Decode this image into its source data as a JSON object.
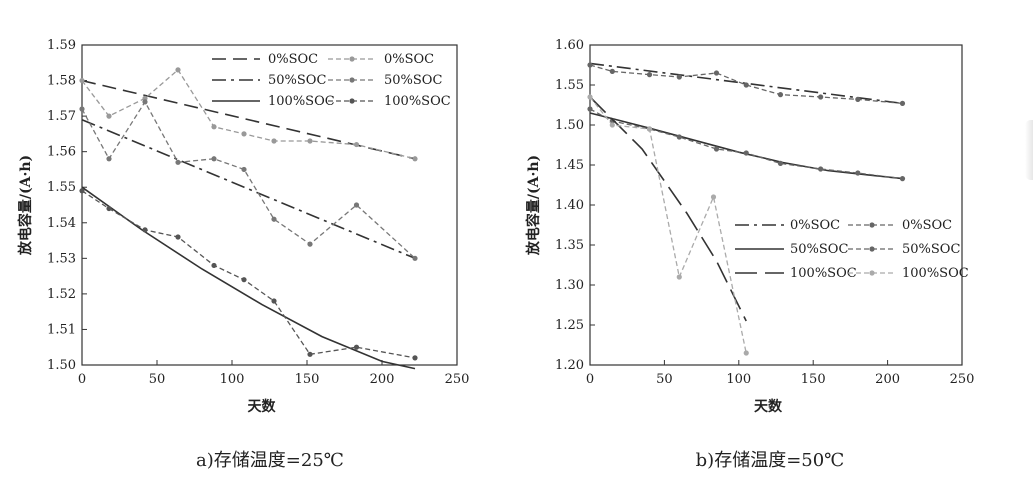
{
  "chart_data": [
    {
      "type": "line",
      "caption": "a)存储温度=25℃",
      "xlabel": "天数",
      "ylabel": "放电容量/(A·h)",
      "xlim": [
        0,
        250
      ],
      "ylim": [
        1.5,
        1.59
      ],
      "xticks": [
        "0",
        "50",
        "100",
        "150",
        "200",
        "250"
      ],
      "yticks": [
        "1.50",
        "1.51",
        "1.52",
        "1.53",
        "1.54",
        "1.55",
        "1.56",
        "1.57",
        "1.58",
        "1.59"
      ],
      "grid": false,
      "legend_position": "top-right",
      "series": [
        {
          "name": "0%SOC",
          "kind": "fit",
          "dash": "dashed",
          "color": "#333333",
          "x": [
            0,
            222
          ],
          "y": [
            1.58,
            1.558
          ]
        },
        {
          "name": "0%SOC",
          "kind": "measured",
          "color": "#999999",
          "x": [
            0,
            18,
            42,
            64,
            88,
            108,
            128,
            152,
            183,
            222
          ],
          "y": [
            1.58,
            1.57,
            1.575,
            1.583,
            1.567,
            1.565,
            1.563,
            1.563,
            1.562,
            1.558
          ]
        },
        {
          "name": "50%SOC",
          "kind": "fit",
          "dash": "dashdot",
          "color": "#333333",
          "x": [
            0,
            222
          ],
          "y": [
            1.569,
            1.53
          ]
        },
        {
          "name": "50%SOC",
          "kind": "measured",
          "color": "#777777",
          "x": [
            0,
            18,
            42,
            64,
            88,
            108,
            128,
            152,
            183,
            222
          ],
          "y": [
            1.572,
            1.558,
            1.574,
            1.557,
            1.558,
            1.555,
            1.541,
            1.534,
            1.545,
            1.53
          ]
        },
        {
          "name": "100%SOC",
          "kind": "fit",
          "dash": "solid",
          "color": "#333333",
          "x": [
            0,
            40,
            80,
            120,
            160,
            200,
            222
          ],
          "y": [
            1.55,
            1.538,
            1.527,
            1.517,
            1.508,
            1.501,
            1.499
          ]
        },
        {
          "name": "100%SOC",
          "kind": "measured",
          "color": "#555555",
          "x": [
            0,
            18,
            42,
            64,
            88,
            108,
            128,
            152,
            183,
            222
          ],
          "y": [
            1.549,
            1.544,
            1.538,
            1.536,
            1.528,
            1.524,
            1.518,
            1.503,
            1.505,
            1.502
          ]
        }
      ]
    },
    {
      "type": "line",
      "caption": "b)存储温度=50℃",
      "xlabel": "天数",
      "ylabel": "放电容量/(A·h)",
      "xlim": [
        0,
        250
      ],
      "ylim": [
        1.2,
        1.6
      ],
      "xticks": [
        "0",
        "50",
        "100",
        "150",
        "200",
        "250"
      ],
      "yticks": [
        "1.20",
        "1.25",
        "1.30",
        "1.35",
        "1.40",
        "1.45",
        "1.50",
        "1.55",
        "1.60"
      ],
      "grid": false,
      "legend_position": "center-right",
      "series": [
        {
          "name": "0%SOC",
          "kind": "fit",
          "dash": "dashdot",
          "color": "#333333",
          "x": [
            0,
            210
          ],
          "y": [
            1.577,
            1.527
          ]
        },
        {
          "name": "0%SOC",
          "kind": "measured",
          "color": "#666666",
          "x": [
            0,
            15,
            40,
            60,
            85,
            105,
            128,
            155,
            180,
            210
          ],
          "y": [
            1.575,
            1.567,
            1.563,
            1.56,
            1.565,
            1.55,
            1.538,
            1.535,
            1.532,
            1.527
          ]
        },
        {
          "name": "50%SOC",
          "kind": "fit",
          "dash": "solid",
          "color": "#333333",
          "x": [
            0,
            15,
            40,
            70,
            100,
            130,
            160,
            190,
            210
          ],
          "y": [
            1.515,
            1.508,
            1.496,
            1.481,
            1.466,
            1.453,
            1.443,
            1.437,
            1.433
          ]
        },
        {
          "name": "50%SOC",
          "kind": "measured",
          "color": "#666666",
          "x": [
            0,
            15,
            40,
            60,
            85,
            105,
            128,
            155,
            180,
            210
          ],
          "y": [
            1.52,
            1.505,
            1.495,
            1.485,
            1.47,
            1.465,
            1.452,
            1.445,
            1.44,
            1.433
          ]
        },
        {
          "name": "100%SOC",
          "kind": "fit",
          "dash": "longdash",
          "color": "#333333",
          "x": [
            0,
            35,
            65,
            85,
            105
          ],
          "y": [
            1.535,
            1.47,
            1.39,
            1.33,
            1.255
          ]
        },
        {
          "name": "100%SOC",
          "kind": "measured",
          "color": "#aaaaaa",
          "x": [
            0,
            15,
            40,
            60,
            83,
            105
          ],
          "y": [
            1.535,
            1.5,
            1.495,
            1.31,
            1.41,
            1.215
          ]
        }
      ]
    }
  ]
}
